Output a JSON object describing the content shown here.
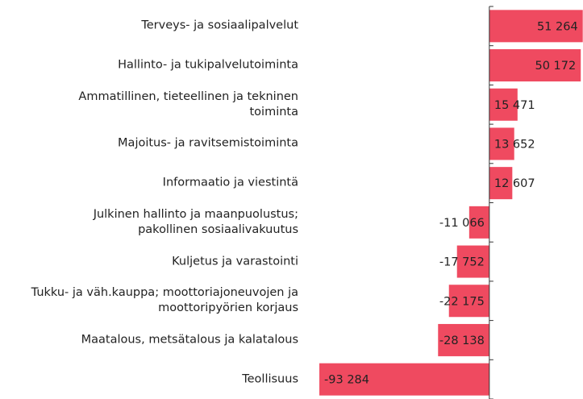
{
  "chart_data": {
    "type": "bar",
    "orientation": "horizontal",
    "color": "#ef4a60",
    "categories": [
      "Terveys- ja sosiaalipalvelut",
      "Hallinto- ja tukipalvelutoiminta",
      "Ammatillinen, tieteellinen ja tekninen\ntoiminta",
      "Majoitus- ja ravitsemistoiminta",
      "Informaatio ja viestintä",
      "Julkinen hallinto ja maanpuolustus;\npakollinen sosiaalivakuutus",
      "Kuljetus ja varastointi",
      "Tukku- ja väh.kauppa; moottoriajoneuvojen ja\nmoottoripyörien korjaus",
      "Maatalous, metsätalous ja kalatalous",
      "Teollisuus"
    ],
    "values": [
      51264,
      50172,
      15471,
      13652,
      12607,
      -11066,
      -17752,
      -22175,
      -28138,
      -93284
    ],
    "value_labels": [
      "51 264",
      "50 172",
      "15 471",
      "13 652",
      "12 607",
      "-11 066",
      "-17 752",
      "-22 175",
      "-28 138",
      "-93 284"
    ],
    "xlim": [
      -93300,
      51400
    ]
  }
}
